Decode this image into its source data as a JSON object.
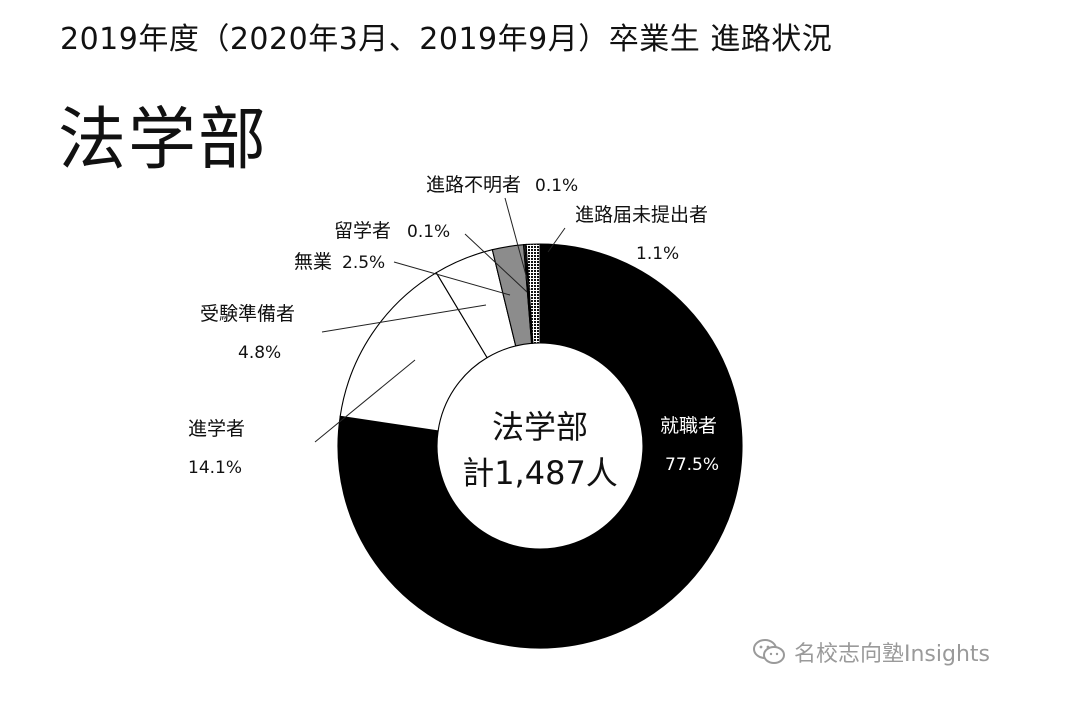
{
  "header": {
    "title": "2019年度（2020年3月、2019年9月）卒業生 進路状況",
    "faculty": "法学部"
  },
  "watermark": {
    "icon": "wechat-icon",
    "text": "名校志向塾Insights"
  },
  "chart_data": {
    "type": "donut",
    "center_label": [
      "法学部",
      "計1,487人"
    ],
    "total": 1487,
    "segments": [
      {
        "name": "就職者",
        "value": 77.5,
        "label": "77.5%",
        "fill": "#000000",
        "pattern": "solid"
      },
      {
        "name": "進学者",
        "value": 14.1,
        "label": "14.1%",
        "fill": "#ffffff",
        "pattern": "solid"
      },
      {
        "name": "受験準備者",
        "value": 4.8,
        "label": "4.8%",
        "fill": "#ffffff",
        "pattern": "solid"
      },
      {
        "name": "無業",
        "value": 2.5,
        "label": "2.5%",
        "fill": "#8c8c8c",
        "pattern": "solid"
      },
      {
        "name": "留学者",
        "value": 0.1,
        "label": "0.1%",
        "fill": "#ffffff",
        "pattern": "dots"
      },
      {
        "name": "進路不明者",
        "value": 0.1,
        "label": "0.1%",
        "fill": "#ffffff",
        "pattern": "dots"
      },
      {
        "name": "進路届未提出者",
        "value": 1.1,
        "label": "1.1%",
        "fill": "#ffffff",
        "pattern": "crosshatch"
      }
    ]
  }
}
